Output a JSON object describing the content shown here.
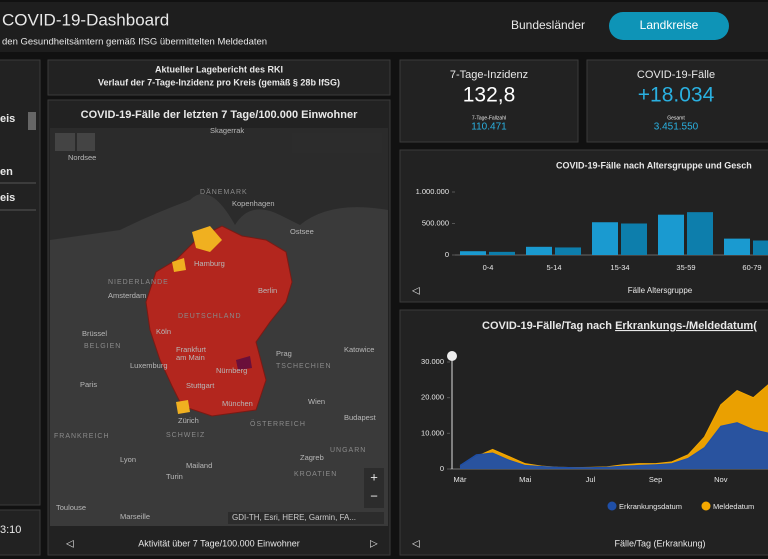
{
  "header": {
    "title": "COVID-19-Dashboard",
    "subtitle": "den Gesundheitsämtern gemäß IfSG übermittelten Meldedaten",
    "tabs": [
      "Bundesländer",
      "Landkreise"
    ]
  },
  "sidebar": {
    "items": [
      "eis",
      "en",
      "eis"
    ],
    "time": "3:10"
  },
  "report": {
    "title": "Aktueller Lagebericht des RKI",
    "subtitle": "Verlauf der 7-Tage-Inzidenz pro Kreis (gemäß § 28b IfSG)"
  },
  "map": {
    "title": "COVID-19-Fälle der letzten 7 Tage/100.000 Einwohner",
    "labels": [
      "Skagerrak",
      "Nordsee",
      "DÄNEMARK",
      "Kopenhagen",
      "Ostsee",
      "Hamburg",
      "NIEDERLANDE",
      "Amsterdam",
      "Berlin",
      "Brüssel",
      "BELGIEN",
      "Köln",
      "DEUTSCHLAND",
      "Frankfurt",
      "am Main",
      "Luxemburg",
      "Prag",
      "TSCHECHIEN",
      "Katowice",
      "Paris",
      "Nürnberg",
      "Stuttgart",
      "München",
      "Wien",
      "Zürich",
      "SCHWEIZ",
      "ÖSTERREICH",
      "Budapest",
      "FRANKREICH",
      "UNGARN",
      "Lyon",
      "Mailand",
      "Turin",
      "Zagreb",
      "KROATIEN",
      "Toulouse",
      "Marseille"
    ],
    "attribution": "GDI-TH, Esri, HERE, Garmin, FA...",
    "footer": "Aktivität über 7 Tage/100.000 Einwohner"
  },
  "kpis": [
    {
      "title": "7-Tage-Inzidenz",
      "value": "132,8",
      "sub_label": "7-Tage-Fallzahl",
      "sub_value": "110.471"
    },
    {
      "title": "COVID-19-Fälle",
      "value": "+18.034",
      "sub_label": "Gesamt",
      "sub_value": "3.451.550"
    }
  ],
  "age_chart": {
    "type": "bar",
    "title": "COVID-19-Fälle nach Altersgruppe und Gesch",
    "x_label": "Fälle Altersgruppe",
    "categories": [
      "0-4",
      "5-14",
      "15-34",
      "35-59",
      "60-79"
    ],
    "series": [
      {
        "color": "#1a9ad0",
        "values": [
          60000,
          130000,
          520000,
          640000,
          260000
        ]
      },
      {
        "color": "#0d7eac",
        "values": [
          50000,
          120000,
          500000,
          680000,
          230000
        ]
      }
    ],
    "ylim": [
      0,
      1000000
    ],
    "yticks": [
      0,
      {
        "value": 500000,
        "label": "500.000"
      },
      {
        "value": 1000000,
        "label": "1.000.000"
      }
    ]
  },
  "daily_chart": {
    "type": "area",
    "title_prefix": "COVID-19-Fälle/Tag nach ",
    "title_link": "Erkrankungs-/Meldedatum",
    "title_suffix": "(",
    "x_label": "Fälle/Tag (Erkrankung)",
    "categories": [
      "Mär",
      null,
      null,
      null,
      "Mai",
      null,
      null,
      null,
      "Jul",
      null,
      null,
      null,
      "Sep",
      null,
      null,
      null,
      "Nov",
      null,
      null,
      null
    ],
    "series": [
      {
        "name": "Meldedatum",
        "color": "#f5a800",
        "values": [
          500,
          3500,
          5500,
          3500,
          1500,
          800,
          500,
          400,
          450,
          600,
          1200,
          1500,
          1500,
          2000,
          4000,
          9000,
          18000,
          22000,
          20000,
          24000
        ]
      },
      {
        "name": "Erkrankungsdatum",
        "color": "#1f4fa8",
        "values": [
          1000,
          4000,
          4500,
          2500,
          1000,
          700,
          500,
          400,
          400,
          500,
          800,
          1000,
          1200,
          1500,
          3000,
          6000,
          12000,
          13000,
          11000,
          10000
        ]
      }
    ],
    "ylim": [
      0,
      30000
    ],
    "yticks": [
      0,
      {
        "value": 10000,
        "label": "10.000"
      },
      {
        "value": 20000,
        "label": "20.000"
      },
      {
        "value": 30000,
        "label": "30.000"
      }
    ]
  }
}
